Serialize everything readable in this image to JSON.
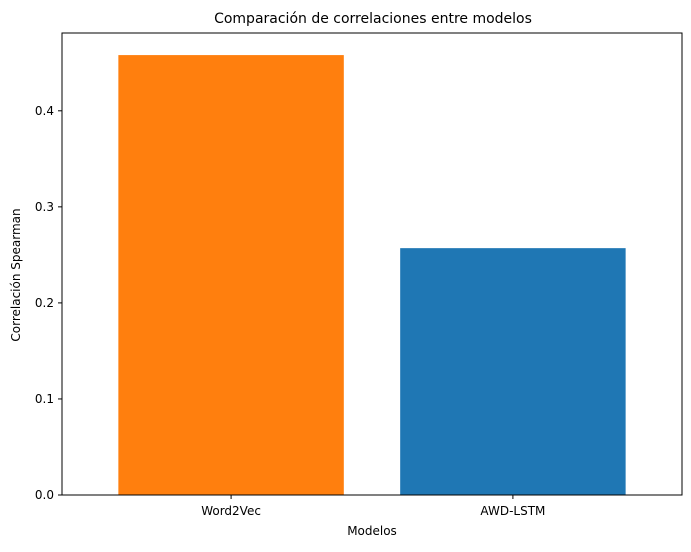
{
  "chart_data": {
    "type": "bar",
    "title": "Comparación de correlaciones entre modelos",
    "xlabel": "Modelos",
    "ylabel": "Correlación Spearman",
    "categories": [
      "Word2Vec",
      "AWD-LSTM"
    ],
    "values": [
      0.458,
      0.257
    ],
    "colors": [
      "#ff7f0e",
      "#1f77b4"
    ],
    "ylim": [
      0,
      0.481
    ],
    "yticks": [
      0.0,
      0.1,
      0.2,
      0.3,
      0.4
    ],
    "ytick_labels": [
      "0.0",
      "0.1",
      "0.2",
      "0.3",
      "0.4"
    ],
    "grid": false,
    "legend": "none"
  }
}
